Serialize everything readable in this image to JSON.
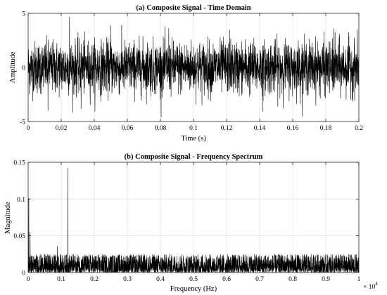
{
  "chart_data": [
    {
      "type": "line",
      "title": "(a) Composite Signal - Time Domain",
      "xlabel": "Time (s)",
      "ylabel": "Amplitude",
      "xlim": [
        0,
        0.2
      ],
      "ylim": [
        -5,
        5
      ],
      "xticks": [
        "0",
        "0.02",
        "0.04",
        "0.06",
        "0.08",
        "0.1",
        "0.12",
        "0.14",
        "0.16",
        "0.18",
        "0.2"
      ],
      "xtick_values": [
        0,
        0.02,
        0.04,
        0.06,
        0.08,
        0.1,
        0.12,
        0.14,
        0.16,
        0.18,
        0.2
      ],
      "yticks": [
        "-5",
        "0",
        "5"
      ],
      "ytick_values": [
        -5,
        0,
        5
      ],
      "grid": true,
      "series": [
        {
          "x_range": [
            0,
            0.2
          ],
          "noise_std": 1.2,
          "peaks": [
            {
              "x": 0.025,
              "y": 4.7
            },
            {
              "x": 0.05,
              "y": 3.9
            },
            {
              "x": 0.142,
              "y": -4.1
            },
            {
              "x": 0.012,
              "y": -4.0
            },
            {
              "x": 0.085,
              "y": 3.6
            },
            {
              "x": 0.122,
              "y": 3.5
            },
            {
              "x": 0.185,
              "y": 3.6
            },
            {
              "x": 0.032,
              "y": -3.8
            }
          ]
        }
      ]
    },
    {
      "type": "line",
      "title": "(b) Composite Signal - Frequency Spectrum",
      "xlabel": "Frequency (Hz)",
      "ylabel": "Magnitude",
      "xlim": [
        0,
        10000
      ],
      "ylim": [
        0,
        0.15
      ],
      "x_multiplier": "× 10",
      "x_multiplier_exp": "4",
      "xticks": [
        "0",
        "0.1",
        "0.2",
        "0.3",
        "0.4",
        "0.5",
        "0.6",
        "0.7",
        "0.8",
        "0.9",
        "1"
      ],
      "xtick_values": [
        0,
        1000,
        2000,
        3000,
        4000,
        5000,
        6000,
        7000,
        8000,
        9000,
        10000
      ],
      "yticks": [
        "0",
        "0.05",
        "0.1",
        "0.15"
      ],
      "ytick_values": [
        0,
        0.05,
        0.1,
        0.15
      ],
      "grid": true,
      "series": [
        {
          "noise_floor_max": 0.025,
          "peaks": [
            {
              "x": 20,
              "y": 0.101
            },
            {
              "x": 60,
              "y": 0.055
            },
            {
              "x": 1200,
              "y": 0.142
            },
            {
              "x": 880,
              "y": 0.036
            }
          ]
        }
      ]
    }
  ]
}
